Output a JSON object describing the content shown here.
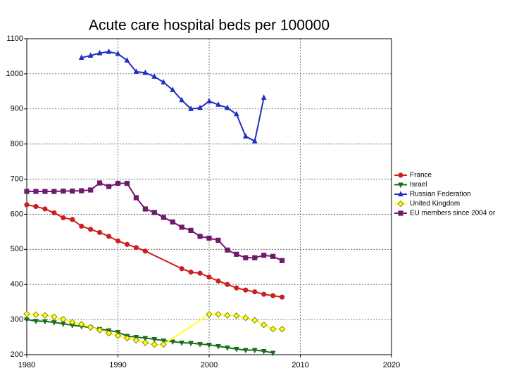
{
  "chart_data": {
    "type": "line",
    "title": "Acute care hospital beds per 100000",
    "xlim": [
      1980,
      2020
    ],
    "xticks": [
      1980,
      1990,
      2000,
      2010,
      2020
    ],
    "ylim": [
      200,
      1100
    ],
    "yticks": [
      200,
      300,
      400,
      500,
      600,
      700,
      800,
      900,
      1000,
      1100
    ],
    "grid": true,
    "legend": "right",
    "series": [
      {
        "name": "France",
        "color": "#cc1f1f",
        "marker": "circle",
        "x": [
          1980,
          1981,
          1982,
          1983,
          1984,
          1985,
          1986,
          1987,
          1988,
          1989,
          1990,
          1991,
          1992,
          1993,
          1997,
          1998,
          1999,
          2000,
          2001,
          2002,
          2003,
          2004,
          2005,
          2006,
          2007,
          2008
        ],
        "values": [
          627,
          622,
          615,
          604,
          590,
          585,
          566,
          557,
          548,
          537,
          524,
          514,
          505,
          495,
          445,
          435,
          432,
          421,
          410,
          400,
          390,
          384,
          379,
          372,
          368,
          364
        ]
      },
      {
        "name": "Israel",
        "color": "#1a6e1a",
        "marker": "triangle-down",
        "x": [
          1980,
          1981,
          1982,
          1983,
          1984,
          1985,
          1986,
          1987,
          1988,
          1989,
          1990,
          1991,
          1992,
          1993,
          1994,
          1995,
          1996,
          1997,
          1998,
          1999,
          2000,
          2001,
          2002,
          2003,
          2004,
          2005,
          2006,
          2007
        ],
        "values": [
          300,
          296,
          295,
          292,
          288,
          284,
          281,
          277,
          273,
          269,
          264,
          253,
          250,
          247,
          244,
          240,
          237,
          234,
          233,
          230,
          228,
          224,
          220,
          216,
          213,
          213,
          210,
          205
        ]
      },
      {
        "name": "Russian Federation",
        "color": "#1f2fc0",
        "marker": "triangle-up",
        "x": [
          1986,
          1987,
          1988,
          1989,
          1990,
          1991,
          1992,
          1993,
          1994,
          1995,
          1996,
          1997,
          1998,
          1999,
          2000,
          2001,
          2002,
          2003,
          2004,
          2005,
          2006
        ],
        "values": [
          1046,
          1052,
          1059,
          1063,
          1057,
          1038,
          1006,
          1003,
          992,
          976,
          954,
          925,
          900,
          903,
          922,
          912,
          903,
          885,
          822,
          808,
          932
        ]
      },
      {
        "name": "United Kingdom",
        "color": "#ffff1a",
        "marker": "diamond",
        "x": [
          1980,
          1981,
          1982,
          1983,
          1984,
          1985,
          1986,
          1987,
          1988,
          1989,
          1990,
          1991,
          1992,
          1993,
          1994,
          1995,
          2000,
          2001,
          2002,
          2003,
          2004,
          2005,
          2006,
          2007,
          2008
        ],
        "values": [
          316,
          314,
          312,
          308,
          301,
          293,
          287,
          278,
          270,
          261,
          254,
          247,
          241,
          234,
          229,
          229,
          315,
          315,
          312,
          311,
          305,
          298,
          285,
          273,
          273
        ]
      },
      {
        "name": "EU members since 2004 or",
        "color": "#6e1a6e",
        "marker": "square",
        "x": [
          1980,
          1981,
          1982,
          1983,
          1984,
          1985,
          1986,
          1987,
          1988,
          1989,
          1990,
          1991,
          1992,
          1993,
          1994,
          1995,
          1996,
          1997,
          1998,
          1999,
          2000,
          2001,
          2002,
          2003,
          2004,
          2005,
          2006,
          2007,
          2008
        ],
        "values": [
          665,
          665,
          665,
          665,
          666,
          666,
          667,
          669,
          689,
          679,
          688,
          688,
          647,
          615,
          605,
          591,
          578,
          563,
          554,
          537,
          532,
          526,
          498,
          486,
          476,
          476,
          483,
          480,
          468
        ]
      }
    ]
  }
}
